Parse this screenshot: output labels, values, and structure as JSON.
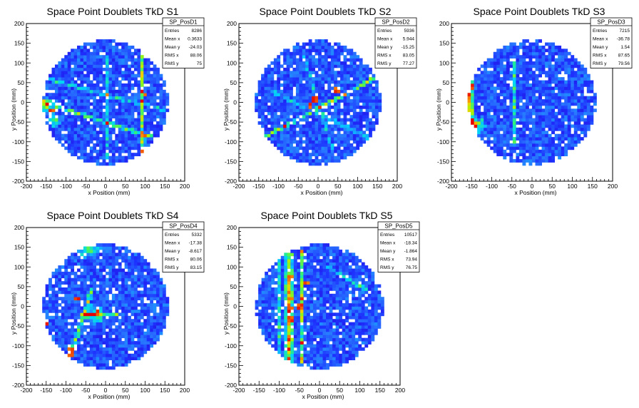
{
  "chart_data": [
    {
      "type": "heatmap",
      "title": "Space Point Doublets TkD S1",
      "xlabel": "x Position (mm)",
      "ylabel": "y Position (mm)",
      "xlim": [
        -200,
        200
      ],
      "ylim": [
        -200,
        200
      ],
      "xticks": [
        "-200",
        "-150",
        "-100",
        "-50",
        "0",
        "50",
        "100",
        "150",
        "200"
      ],
      "yticks": [
        "-200",
        "-150",
        "-100",
        "-50",
        "0",
        "50",
        "100",
        "150",
        "200"
      ],
      "stats": {
        "name": "SP_PosD1",
        "rows": [
          [
            "Entries",
            "8286"
          ],
          [
            "Mean x",
            "0.3633"
          ],
          [
            "Mean y",
            "-24.03"
          ],
          [
            "RMS x",
            "88.06"
          ],
          [
            "RMS y",
            "75"
          ]
        ]
      },
      "features": [
        {
          "kind": "line",
          "p1": [
            -155,
            0
          ],
          "p2": [
            140,
            -95
          ],
          "w": 5,
          "strength": 0.5
        },
        {
          "kind": "line",
          "p1": [
            -150,
            60
          ],
          "p2": [
            150,
            -20
          ],
          "w": 5,
          "strength": 0.35
        },
        {
          "kind": "line",
          "p1": [
            90,
            150
          ],
          "p2": [
            95,
            -130
          ],
          "w": 6,
          "strength": 0.55
        },
        {
          "kind": "line",
          "p1": [
            5,
            120
          ],
          "p2": [
            5,
            -150
          ],
          "w": 4,
          "strength": 0.3
        },
        {
          "kind": "line",
          "p1": [
            30,
            40
          ],
          "p2": [
            150,
            40
          ],
          "w": 4,
          "strength": 0.25
        },
        {
          "kind": "blob",
          "c": [
            -150,
            -5
          ],
          "r": 18,
          "strength": 0.6
        },
        {
          "kind": "blob",
          "c": [
            -130,
            -45
          ],
          "r": 18,
          "strength": 0.4
        }
      ],
      "hot": [
        [
          95,
          -120
        ],
        [
          100,
          20
        ],
        [
          -135,
          -20
        ]
      ]
    },
    {
      "type": "heatmap",
      "title": "Space Point Doublets TkD S2",
      "xlabel": "x Position (mm)",
      "ylabel": "y Position (mm)",
      "xlim": [
        -200,
        200
      ],
      "ylim": [
        -200,
        200
      ],
      "xticks": [
        "-200",
        "-150",
        "-100",
        "-50",
        "0",
        "50",
        "100",
        "150",
        "200"
      ],
      "yticks": [
        "-200",
        "-150",
        "-100",
        "-50",
        "0",
        "50",
        "100",
        "150",
        "200"
      ],
      "stats": {
        "name": "SP_PosD2",
        "rows": [
          [
            "Entries",
            "5936"
          ],
          [
            "Mean x",
            "5.944"
          ],
          [
            "Mean y",
            "-15.25"
          ],
          [
            "RMS x",
            "83.05"
          ],
          [
            "RMS y",
            "77.27"
          ]
        ]
      },
      "features": [
        {
          "kind": "line",
          "p1": [
            -130,
            -85
          ],
          "p2": [
            140,
            60
          ],
          "w": 5,
          "strength": 0.6
        },
        {
          "kind": "line",
          "p1": [
            -120,
            30
          ],
          "p2": [
            130,
            -90
          ],
          "w": 5,
          "strength": 0.3
        },
        {
          "kind": "line",
          "p1": [
            -40,
            130
          ],
          "p2": [
            40,
            -130
          ],
          "w": 4,
          "strength": 0.25
        }
      ],
      "hot": [
        [
          -20,
          -5
        ],
        [
          -5,
          10
        ],
        [
          50,
          30
        ]
      ]
    },
    {
      "type": "heatmap",
      "title": "Space Point Doublets TkD S3",
      "xlabel": "x Position (mm)",
      "ylabel": "y Position (mm)",
      "xlim": [
        -200,
        200
      ],
      "ylim": [
        -200,
        200
      ],
      "xticks": [
        "-200",
        "-150",
        "-100",
        "-50",
        "0",
        "50",
        "100",
        "150",
        "200"
      ],
      "yticks": [
        "-200",
        "-150",
        "-100",
        "-50",
        "0",
        "50",
        "100",
        "150",
        "200"
      ],
      "stats": {
        "name": "SP_PosD3",
        "rows": [
          [
            "Entries",
            "7215"
          ],
          [
            "Mean x",
            "-36.78"
          ],
          [
            "Mean y",
            "1.54"
          ],
          [
            "RMS x",
            "87.65"
          ],
          [
            "RMS y",
            "79.56"
          ]
        ]
      },
      "features": [
        {
          "kind": "line",
          "p1": [
            -160,
            60
          ],
          "p2": [
            -150,
            -80
          ],
          "w": 12,
          "strength": 0.7
        },
        {
          "kind": "line",
          "p1": [
            -45,
            110
          ],
          "p2": [
            -45,
            -110
          ],
          "w": 4,
          "strength": 0.4
        },
        {
          "kind": "blob",
          "c": [
            -140,
            -60
          ],
          "r": 25,
          "strength": 0.5
        }
      ],
      "hot": [
        [
          -160,
          30
        ],
        [
          -160,
          20
        ],
        [
          -155,
          40
        ]
      ]
    },
    {
      "type": "heatmap",
      "title": "Space Point Doublets TkD S4",
      "xlabel": "x Position (mm)",
      "ylabel": "y Position (mm)",
      "xlim": [
        -200,
        200
      ],
      "ylim": [
        -200,
        200
      ],
      "xticks": [
        "-200",
        "-150",
        "-100",
        "-50",
        "0",
        "50",
        "100",
        "150",
        "200"
      ],
      "yticks": [
        "-200",
        "-150",
        "-100",
        "-50",
        "0",
        "50",
        "100",
        "150",
        "200"
      ],
      "stats": {
        "name": "SP_PosD4",
        "rows": [
          [
            "Entries",
            "5332"
          ],
          [
            "Mean x",
            "-17.38"
          ],
          [
            "Mean y",
            "-8.617"
          ],
          [
            "RMS x",
            "80.06"
          ],
          [
            "RMS y",
            "83.15"
          ]
        ]
      },
      "features": [
        {
          "kind": "line",
          "p1": [
            -90,
            -130
          ],
          "p2": [
            -35,
            40
          ],
          "w": 6,
          "strength": 0.45
        },
        {
          "kind": "line",
          "p1": [
            -60,
            -20
          ],
          "p2": [
            30,
            -20
          ],
          "w": 5,
          "strength": 0.4
        },
        {
          "kind": "blob",
          "c": [
            -30,
            -20
          ],
          "r": 25,
          "strength": 0.45
        },
        {
          "kind": "blob",
          "c": [
            -40,
            150
          ],
          "r": 30,
          "strength": 0.4
        }
      ],
      "hot": [
        [
          -85,
          -120
        ],
        [
          -85,
          -110
        ],
        [
          -20,
          -15
        ],
        [
          -70,
          20
        ],
        [
          -150,
          -40
        ]
      ]
    },
    {
      "type": "heatmap",
      "title": "Space Point Doublets TkD S5",
      "xlabel": "x Position (mm)",
      "ylabel": "y Position (mm)",
      "xlim": [
        -200,
        200
      ],
      "ylim": [
        -200,
        200
      ],
      "xticks": [
        "-200",
        "-150",
        "-100",
        "-50",
        "0",
        "50",
        "100",
        "150",
        "200"
      ],
      "yticks": [
        "-200",
        "-150",
        "-100",
        "-50",
        "0",
        "50",
        "100",
        "150",
        "200"
      ],
      "stats": {
        "name": "SP_PosD5",
        "rows": [
          [
            "Entries",
            "10517"
          ],
          [
            "Mean x",
            "-18.34"
          ],
          [
            "Mean y",
            "-1.864"
          ],
          [
            "RMS x",
            "73.94"
          ],
          [
            "RMS y",
            "76.75"
          ]
        ]
      },
      "features": [
        {
          "kind": "line",
          "p1": [
            -75,
            130
          ],
          "p2": [
            -75,
            -140
          ],
          "w": 10,
          "strength": 0.65
        },
        {
          "kind": "line",
          "p1": [
            -45,
            140
          ],
          "p2": [
            -45,
            -140
          ],
          "w": 7,
          "strength": 0.55
        },
        {
          "kind": "line",
          "p1": [
            -100,
            120
          ],
          "p2": [
            -100,
            -130
          ],
          "w": 5,
          "strength": 0.3
        },
        {
          "kind": "line",
          "p1": [
            20,
            100
          ],
          "p2": [
            120,
            40
          ],
          "w": 5,
          "strength": 0.35
        },
        {
          "kind": "line",
          "p1": [
            80,
            0
          ],
          "p2": [
            80,
            -140
          ],
          "w": 4,
          "strength": 0.2
        }
      ],
      "hot": [
        [
          -70,
          20
        ],
        [
          -70,
          -30
        ],
        [
          -50,
          0
        ],
        [
          -75,
          70
        ],
        [
          -30,
          60
        ],
        [
          -70,
          -10
        ]
      ]
    }
  ]
}
